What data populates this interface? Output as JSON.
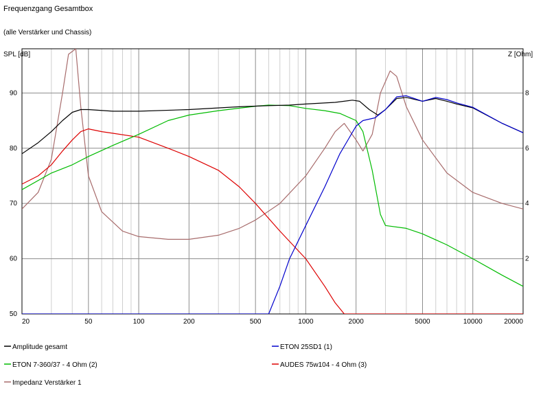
{
  "chart_data": {
    "type": "line",
    "title": "Frequenzgang Gesamtbox",
    "subtitle": "(alle Verstärker und Chassis)",
    "ylabel_left": "SPL [dB]",
    "ylabel_right": "Z [Ohm]",
    "x_scale": "log",
    "xlim": [
      20,
      20000
    ],
    "ylim_left": [
      50,
      98
    ],
    "ylim_right": [
      0,
      9.6
    ],
    "grid": true,
    "legend_position": "bottom",
    "x_ticks": [
      {
        "v": 20,
        "label": "20"
      },
      {
        "v": 50,
        "label": "50"
      },
      {
        "v": 100,
        "label": "100"
      },
      {
        "v": 200,
        "label": "200"
      },
      {
        "v": 500,
        "label": "500"
      },
      {
        "v": 1000,
        "label": "1000"
      },
      {
        "v": 2000,
        "label": "2000"
      },
      {
        "v": 5000,
        "label": "5000"
      },
      {
        "v": 10000,
        "label": "10000"
      },
      {
        "v": 20000,
        "label": "20000"
      }
    ],
    "y_ticks_left": [
      {
        "v": 50,
        "label": "50"
      },
      {
        "v": 60,
        "label": "60"
      },
      {
        "v": 70,
        "label": "70"
      },
      {
        "v": 80,
        "label": "80"
      },
      {
        "v": 90,
        "label": "90"
      }
    ],
    "y_ticks_right": [
      {
        "v": 2,
        "label": "2"
      },
      {
        "v": 4,
        "label": "4"
      },
      {
        "v": 6,
        "label": "6"
      },
      {
        "v": 8,
        "label": "8"
      }
    ],
    "series": [
      {
        "name": "Amplitude gesamt",
        "color": "#000000",
        "axis": "left",
        "points": [
          [
            20,
            79
          ],
          [
            25,
            81
          ],
          [
            30,
            83
          ],
          [
            35,
            85
          ],
          [
            40,
            86.5
          ],
          [
            45,
            87
          ],
          [
            50,
            87
          ],
          [
            70,
            86.7
          ],
          [
            100,
            86.7
          ],
          [
            200,
            87
          ],
          [
            400,
            87.5
          ],
          [
            600,
            87.7
          ],
          [
            800,
            87.8
          ],
          [
            1000,
            88
          ],
          [
            1500,
            88.3
          ],
          [
            1900,
            88.7
          ],
          [
            2100,
            88.5
          ],
          [
            2400,
            87
          ],
          [
            2700,
            86
          ],
          [
            3000,
            87
          ],
          [
            3500,
            89
          ],
          [
            4000,
            89.2
          ],
          [
            5000,
            88.5
          ],
          [
            6000,
            89
          ],
          [
            7000,
            88.5
          ],
          [
            8000,
            88
          ],
          [
            10000,
            87.3
          ],
          [
            15000,
            84.5
          ],
          [
            20000,
            82.8
          ]
        ]
      },
      {
        "name": "ETON 25SD1 (1)",
        "color": "#0000cc",
        "axis": "left",
        "points": [
          [
            20,
            50
          ],
          [
            400,
            50
          ],
          [
            600,
            50
          ],
          [
            700,
            55
          ],
          [
            800,
            60
          ],
          [
            1000,
            66
          ],
          [
            1300,
            73
          ],
          [
            1600,
            79
          ],
          [
            2000,
            84
          ],
          [
            2200,
            85
          ],
          [
            2600,
            85.5
          ],
          [
            3000,
            87
          ],
          [
            3500,
            89.3
          ],
          [
            4000,
            89.5
          ],
          [
            5000,
            88.5
          ],
          [
            6000,
            89.2
          ],
          [
            7000,
            88.8
          ],
          [
            8000,
            88.2
          ],
          [
            10000,
            87.4
          ],
          [
            15000,
            84.5
          ],
          [
            20000,
            82.8
          ]
        ]
      },
      {
        "name": "ETON 7-360/37 - 4 Ohm (2)",
        "color": "#00bb00",
        "axis": "left",
        "points": [
          [
            20,
            72.5
          ],
          [
            30,
            75.5
          ],
          [
            40,
            77
          ],
          [
            50,
            78.5
          ],
          [
            70,
            80.5
          ],
          [
            100,
            82.5
          ],
          [
            150,
            85
          ],
          [
            200,
            86
          ],
          [
            300,
            86.8
          ],
          [
            500,
            87.6
          ],
          [
            600,
            87.8
          ],
          [
            800,
            87.7
          ],
          [
            1000,
            87.2
          ],
          [
            1300,
            86.8
          ],
          [
            1600,
            86.3
          ],
          [
            2000,
            85
          ],
          [
            2200,
            83
          ],
          [
            2500,
            76
          ],
          [
            2800,
            68
          ],
          [
            3000,
            66
          ],
          [
            4000,
            65.5
          ],
          [
            5000,
            64.5
          ],
          [
            7000,
            62.5
          ],
          [
            10000,
            60
          ],
          [
            15000,
            57
          ],
          [
            20000,
            55
          ]
        ]
      },
      {
        "name": "AUDES 75w104 - 4 Ohm (3)",
        "color": "#dd0000",
        "axis": "left",
        "points": [
          [
            20,
            73.5
          ],
          [
            25,
            75
          ],
          [
            30,
            77
          ],
          [
            35,
            79.5
          ],
          [
            40,
            81.5
          ],
          [
            45,
            83
          ],
          [
            50,
            83.5
          ],
          [
            60,
            83
          ],
          [
            70,
            82.7
          ],
          [
            100,
            82
          ],
          [
            150,
            80
          ],
          [
            200,
            78.5
          ],
          [
            300,
            76
          ],
          [
            400,
            73
          ],
          [
            500,
            70
          ],
          [
            700,
            65
          ],
          [
            1000,
            60
          ],
          [
            1300,
            55
          ],
          [
            1500,
            52
          ],
          [
            1700,
            50
          ],
          [
            2000,
            50
          ],
          [
            20000,
            50
          ]
        ]
      },
      {
        "name": "Impedanz Verstärker 1",
        "color": "#a76b6b",
        "axis": "right",
        "points": [
          [
            20,
            3.8
          ],
          [
            25,
            4.4
          ],
          [
            30,
            5.6
          ],
          [
            35,
            8
          ],
          [
            38,
            9.4
          ],
          [
            42,
            9.6
          ],
          [
            45,
            7.5
          ],
          [
            50,
            5
          ],
          [
            60,
            3.7
          ],
          [
            80,
            3
          ],
          [
            100,
            2.8
          ],
          [
            150,
            2.7
          ],
          [
            200,
            2.7
          ],
          [
            300,
            2.85
          ],
          [
            400,
            3.1
          ],
          [
            500,
            3.4
          ],
          [
            700,
            4
          ],
          [
            1000,
            5
          ],
          [
            1300,
            6
          ],
          [
            1500,
            6.6
          ],
          [
            1700,
            6.9
          ],
          [
            2000,
            6.3
          ],
          [
            2200,
            5.9
          ],
          [
            2500,
            6.5
          ],
          [
            2800,
            8
          ],
          [
            3200,
            8.8
          ],
          [
            3500,
            8.6
          ],
          [
            4000,
            7.5
          ],
          [
            5000,
            6.3
          ],
          [
            7000,
            5.1
          ],
          [
            10000,
            4.4
          ],
          [
            15000,
            4
          ],
          [
            20000,
            3.8
          ]
        ]
      }
    ]
  }
}
